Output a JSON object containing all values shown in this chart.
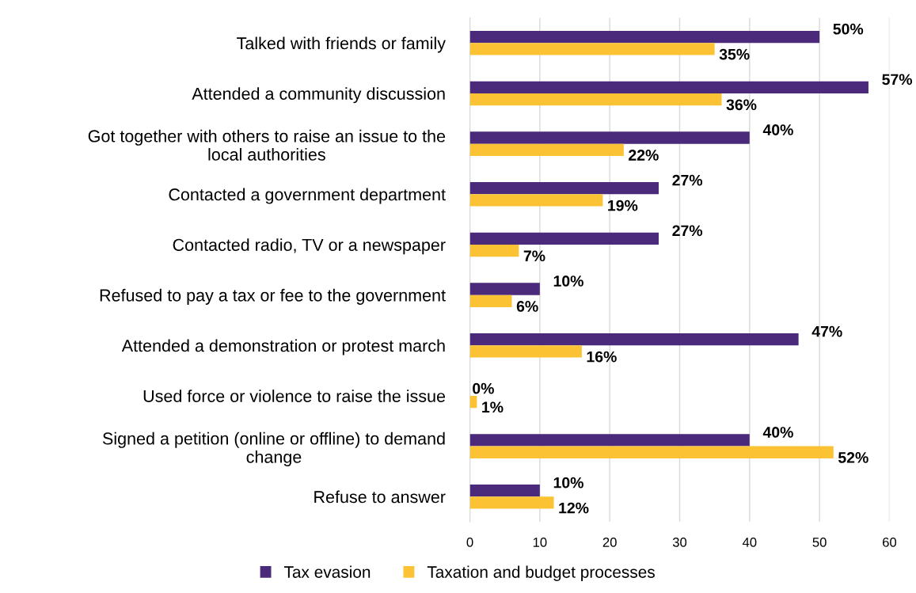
{
  "chart_data": {
    "type": "bar",
    "orientation": "horizontal",
    "categories": [
      "Talked with friends or family",
      "Attended a community discussion",
      "Got together with others to raise an issue to the\nlocal authorities",
      "Contacted a government department",
      "Contacted radio, TV or a newspaper",
      "Refused to pay a tax or fee to the government",
      "Attended a demonstration or protest march",
      "Used force or violence to raise the issue",
      "Signed a petition (online or offline) to demand\nchange",
      "Refuse to answer"
    ],
    "series": [
      {
        "name": "Tax evasion",
        "color": "#4b2a7b",
        "values": [
          50,
          57,
          40,
          27,
          27,
          10,
          47,
          0,
          40,
          10
        ],
        "value_labels": [
          "50%",
          "57%",
          "40%",
          "27%",
          "27%",
          "10%",
          "47%",
          "0%",
          "40%",
          "10%"
        ]
      },
      {
        "name": "Taxation and budget processes",
        "color": "#fbc334",
        "values": [
          35,
          36,
          22,
          19,
          7,
          6,
          16,
          1,
          52,
          12
        ],
        "value_labels": [
          "35%",
          "36%",
          "22%",
          "19%",
          "7%",
          "6%",
          "16%",
          "1%",
          "52%",
          "12%"
        ]
      }
    ],
    "xlim": [
      0,
      60
    ],
    "xticks": [
      0,
      10,
      20,
      30,
      40,
      50,
      60
    ],
    "grid": "x",
    "legend": "bottom"
  }
}
